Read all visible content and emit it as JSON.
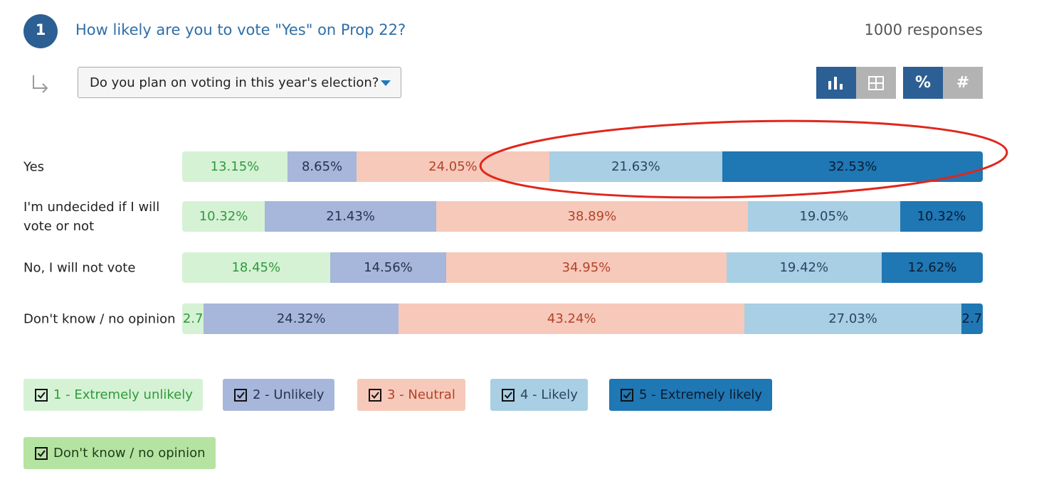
{
  "question": {
    "number": "1",
    "title": "How likely are you to vote \"Yes\" on Prop 22?",
    "responses": "1000 responses"
  },
  "filter": {
    "label": "Do you plan on voting in this year's election?"
  },
  "toggles": [
    "%",
    "#"
  ],
  "chart_data": {
    "type": "stacked-bar-horizontal",
    "categories": [
      "Yes",
      "I'm undecided if I will vote or not",
      "No, I will not vote",
      "Don't know / no opinion"
    ],
    "series": [
      {
        "name": "1 - Extremely unlikely",
        "color": "#d5f2d5",
        "text_color": "#2f9a3a",
        "values": [
          13.15,
          10.32,
          18.45,
          2.7
        ],
        "value_labels": [
          "13.15%",
          "10.32%",
          "18.45%",
          "2.7"
        ]
      },
      {
        "name": "2 - Unlikely",
        "color": "#a7b6db",
        "text_color": "#26344f",
        "values": [
          8.65,
          21.43,
          14.56,
          24.32
        ],
        "value_labels": [
          "8.65%",
          "21.43%",
          "14.56%",
          "24.32%"
        ]
      },
      {
        "name": "3 - Neutral",
        "color": "#f6c9ba",
        "text_color": "#b3432a",
        "values": [
          24.05,
          38.89,
          34.95,
          43.24
        ],
        "value_labels": [
          "24.05%",
          "38.89%",
          "34.95%",
          "43.24%"
        ]
      },
      {
        "name": "4 - Likely",
        "color": "#a8cfe3",
        "text_color": "#2a4560",
        "values": [
          21.63,
          19.05,
          19.42,
          27.03
        ],
        "value_labels": [
          "21.63%",
          "19.05%",
          "19.42%",
          "27.03%"
        ]
      },
      {
        "name": "5 - Extremely likely",
        "color": "#1f77b4",
        "text_color": "#0b1b30",
        "values": [
          32.53,
          10.32,
          12.62,
          2.7
        ],
        "value_labels": [
          "32.53%",
          "10.32%",
          "12.62%",
          "2.7"
        ]
      },
      {
        "name": "Don't know / no opinion",
        "color": "#b5e3a1",
        "text_color": "#1d3d1a",
        "values": [
          null,
          null,
          null,
          null
        ]
      }
    ]
  }
}
